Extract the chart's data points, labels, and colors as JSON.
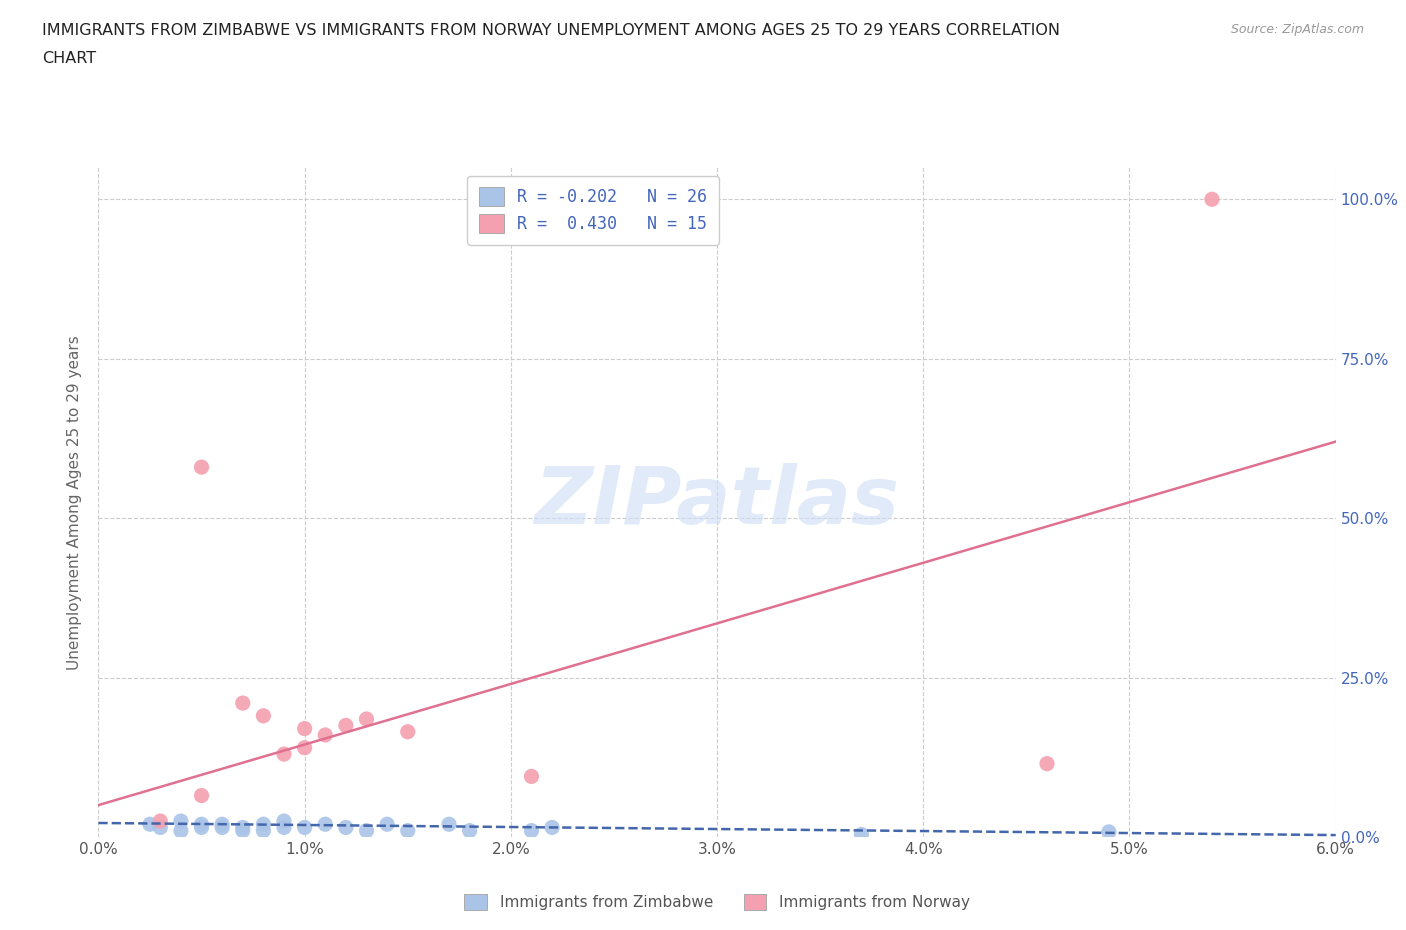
{
  "title_line1": "IMMIGRANTS FROM ZIMBABWE VS IMMIGRANTS FROM NORWAY UNEMPLOYMENT AMONG AGES 25 TO 29 YEARS CORRELATION",
  "title_line2": "CHART",
  "source": "Source: ZipAtlas.com",
  "ylabel": "Unemployment Among Ages 25 to 29 years",
  "xlim": [
    0.0,
    0.06
  ],
  "ylim": [
    0.0,
    1.05
  ],
  "yticks": [
    0.0,
    0.25,
    0.5,
    0.75,
    1.0
  ],
  "ytick_labels": [
    "0.0%",
    "25.0%",
    "50.0%",
    "75.0%",
    "100.0%"
  ],
  "xticks": [
    0.0,
    0.01,
    0.02,
    0.03,
    0.04,
    0.05,
    0.06
  ],
  "xtick_labels": [
    "0.0%",
    "1.0%",
    "2.0%",
    "3.0%",
    "4.0%",
    "5.0%",
    "6.0%"
  ],
  "background_color": "#ffffff",
  "grid_color": "#cccccc",
  "watermark_text": "ZIPatlas",
  "legend_R_zim": "-0.202",
  "legend_N_zim": "26",
  "legend_R_nor": " 0.430",
  "legend_N_nor": "15",
  "zim_color": "#aac4e8",
  "nor_color": "#f4a0b0",
  "zim_line_color": "#4466aa",
  "nor_line_color": "#e07090",
  "tick_color": "#4466bb",
  "axis_label_color": "#666666",
  "zim_scatter": [
    [
      0.0025,
      0.02
    ],
    [
      0.003,
      0.015
    ],
    [
      0.004,
      0.01
    ],
    [
      0.004,
      0.025
    ],
    [
      0.005,
      0.015
    ],
    [
      0.005,
      0.02
    ],
    [
      0.006,
      0.02
    ],
    [
      0.006,
      0.015
    ],
    [
      0.007,
      0.01
    ],
    [
      0.007,
      0.015
    ],
    [
      0.008,
      0.01
    ],
    [
      0.008,
      0.02
    ],
    [
      0.009,
      0.015
    ],
    [
      0.009,
      0.025
    ],
    [
      0.01,
      0.015
    ],
    [
      0.011,
      0.02
    ],
    [
      0.012,
      0.015
    ],
    [
      0.013,
      0.01
    ],
    [
      0.014,
      0.02
    ],
    [
      0.015,
      0.01
    ],
    [
      0.017,
      0.02
    ],
    [
      0.018,
      0.01
    ],
    [
      0.021,
      0.01
    ],
    [
      0.022,
      0.015
    ],
    [
      0.037,
      0.004
    ],
    [
      0.049,
      0.008
    ]
  ],
  "nor_scatter": [
    [
      0.003,
      0.025
    ],
    [
      0.005,
      0.065
    ],
    [
      0.007,
      0.21
    ],
    [
      0.008,
      0.19
    ],
    [
      0.009,
      0.13
    ],
    [
      0.01,
      0.14
    ],
    [
      0.01,
      0.17
    ],
    [
      0.011,
      0.16
    ],
    [
      0.012,
      0.175
    ],
    [
      0.013,
      0.185
    ],
    [
      0.015,
      0.165
    ],
    [
      0.021,
      0.095
    ],
    [
      0.046,
      0.115
    ],
    [
      0.054,
      1.0
    ],
    [
      0.005,
      0.58
    ]
  ],
  "zim_trend_x": [
    0.0,
    0.06
  ],
  "zim_trend_y": [
    0.022,
    0.003
  ],
  "nor_trend_x": [
    0.0,
    0.06
  ],
  "nor_trend_y": [
    0.05,
    0.62
  ]
}
